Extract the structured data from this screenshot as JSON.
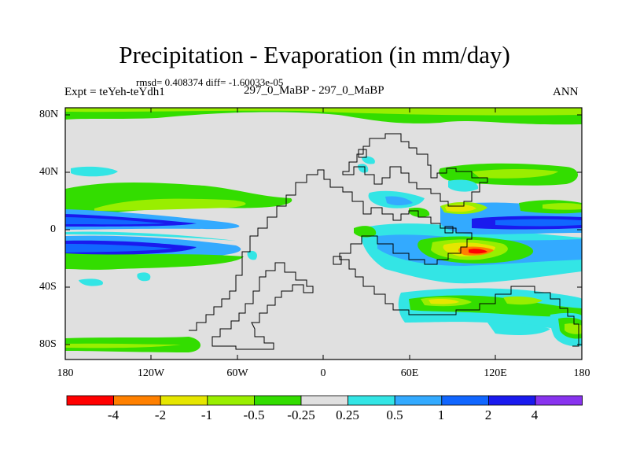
{
  "title": "Precipitation - Evaporation (in mm/day)",
  "stats": "rmsd= 0.408374 diff= -1.60033e-05",
  "experiment": "Expt = teYeh-teYdh1",
  "period": "297_0_MaBP - 297_0_MaBP",
  "season": "ANN",
  "lat_labels": [
    "80N",
    "40N",
    "0",
    "40S",
    "80S"
  ],
  "lon_labels": [
    "180",
    "120W",
    "60W",
    "0",
    "60E",
    "120E",
    "180"
  ],
  "colorbar": {
    "labels": [
      "-4",
      "-2",
      "-1",
      "-0.5",
      "-0.25",
      "0.25",
      "0.5",
      "1",
      "2",
      "4"
    ],
    "colors": [
      "#ff0000",
      "#ff8000",
      "#e6e600",
      "#99ee00",
      "#33dd00",
      "#e0e0e0",
      "#33e5e5",
      "#33aaff",
      "#1166ff",
      "#1a1aee",
      "#8833ee"
    ]
  },
  "colors": {
    "background_field": "#e0e0e0",
    "coastline": "#000000"
  }
}
